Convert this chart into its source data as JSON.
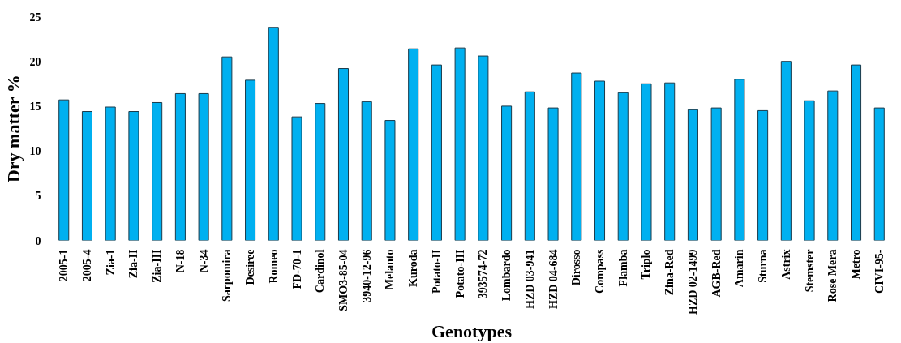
{
  "chart_data": {
    "type": "bar",
    "xlabel": "Genotypes",
    "ylabel": "Dry matter %",
    "categories": [
      "2005-1",
      "2005-4",
      "Zia-1",
      "Zia-II",
      "Zia-III",
      "N-18",
      "N-34",
      "Sarpomira",
      "Desiree",
      "Romeo",
      "FD-70-1",
      "Cardinol",
      "SMO3-85-04",
      "3940-12-96",
      "Melanto",
      "Kuroda",
      "Potato-II",
      "Potato-III",
      "393574-72",
      "Lombardo",
      "HZD 03-941",
      "HZD 04-684",
      "Dirosso",
      "Compass",
      "Flamba",
      "Triplo",
      "Zina-Red",
      "HZD 02-1499",
      "AGB-Red",
      "Amarin",
      "Sturna",
      "Astrix",
      "Stemster",
      "Rose Mera",
      "Metro",
      "CIVI-95-"
    ],
    "values": [
      15.7,
      14.4,
      14.9,
      14.4,
      15.4,
      16.4,
      16.4,
      20.5,
      17.9,
      23.8,
      13.8,
      15.3,
      19.2,
      15.5,
      13.4,
      21.4,
      19.6,
      21.5,
      20.6,
      15.0,
      16.6,
      14.8,
      18.7,
      17.8,
      16.5,
      17.5,
      17.6,
      14.6,
      14.8,
      18.0,
      14.5,
      20.0,
      15.6,
      16.7,
      19.6,
      14.8
    ],
    "color": "#00b0f0",
    "ylim": [
      0,
      25
    ],
    "yticks": [
      0,
      5,
      10,
      15,
      20,
      25
    ],
    "grid": false
  }
}
